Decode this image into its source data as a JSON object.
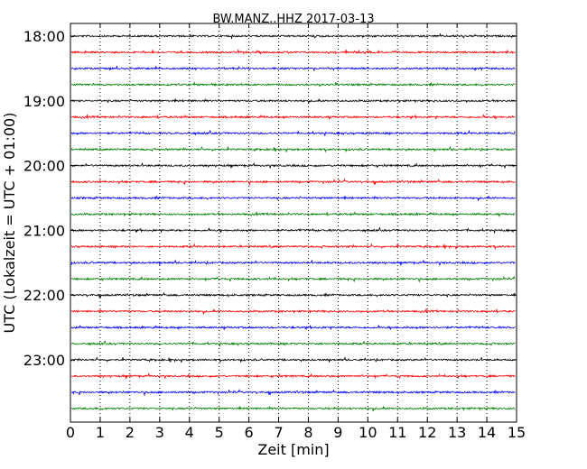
{
  "chart_data": {
    "type": "line",
    "title": "BW.MANZ..HHZ 2017-03-13",
    "xlabel": "Zeit  [min]",
    "ylabel": "UTC (Lokalzeit = UTC + 01:00)",
    "xlim": [
      0,
      15
    ],
    "xticks": [
      "0",
      "1",
      "2",
      "3",
      "4",
      "5",
      "6",
      "7",
      "8",
      "9",
      "10",
      "11",
      "12",
      "13",
      "14",
      "15"
    ],
    "yticks": [
      "18:00",
      "19:00",
      "20:00",
      "21:00",
      "22:00",
      "23:00"
    ],
    "grid": "vertical dotted",
    "colors": [
      "#000000",
      "#ff0000",
      "#0000ff",
      "#008000"
    ],
    "series": [
      {
        "start": "18:00",
        "color": "#000000"
      },
      {
        "start": "18:15",
        "color": "#ff0000"
      },
      {
        "start": "18:30",
        "color": "#0000ff"
      },
      {
        "start": "18:45",
        "color": "#008000"
      },
      {
        "start": "19:00",
        "color": "#000000"
      },
      {
        "start": "19:15",
        "color": "#ff0000"
      },
      {
        "start": "19:30",
        "color": "#0000ff"
      },
      {
        "start": "19:45",
        "color": "#008000"
      },
      {
        "start": "20:00",
        "color": "#000000"
      },
      {
        "start": "20:15",
        "color": "#ff0000"
      },
      {
        "start": "20:30",
        "color": "#0000ff"
      },
      {
        "start": "20:45",
        "color": "#008000"
      },
      {
        "start": "21:00",
        "color": "#000000"
      },
      {
        "start": "21:15",
        "color": "#ff0000"
      },
      {
        "start": "21:30",
        "color": "#0000ff"
      },
      {
        "start": "21:45",
        "color": "#008000"
      },
      {
        "start": "22:00",
        "color": "#000000"
      },
      {
        "start": "22:15",
        "color": "#ff0000"
      },
      {
        "start": "22:30",
        "color": "#0000ff"
      },
      {
        "start": "22:45",
        "color": "#008000"
      },
      {
        "start": "23:00",
        "color": "#000000"
      },
      {
        "start": "23:15",
        "color": "#ff0000"
      },
      {
        "start": "23:30",
        "color": "#0000ff"
      },
      {
        "start": "23:45",
        "color": "#008000"
      }
    ]
  }
}
